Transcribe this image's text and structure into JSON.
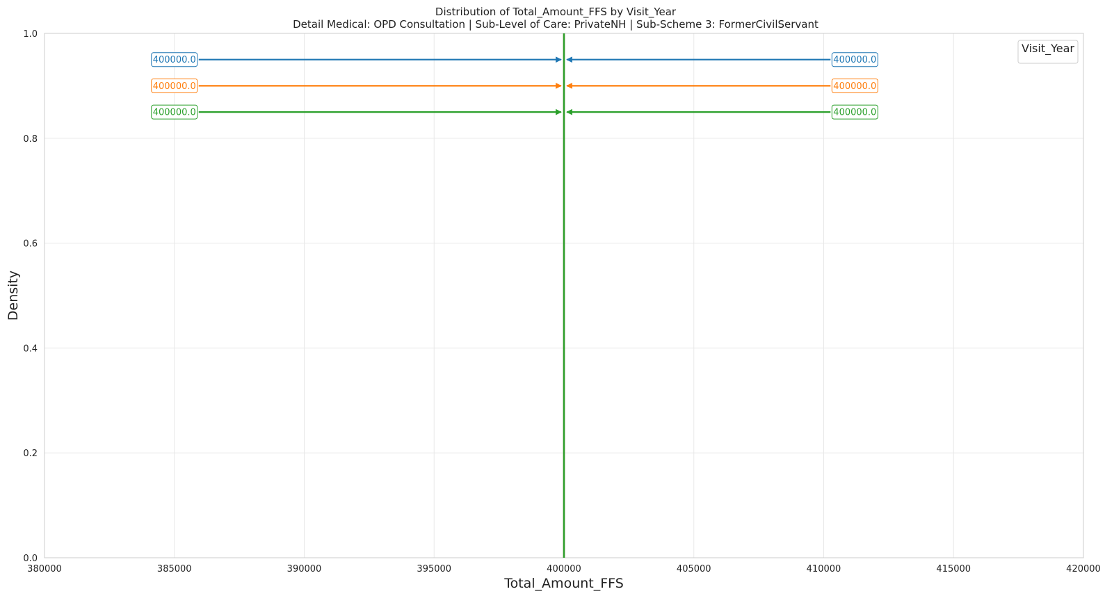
{
  "chart_data": {
    "type": "line",
    "title": "Distribution of Total_Amount_FFS by Visit_Year",
    "subtitle": "Detail Medical: OPD Consultation | Sub-Level of Care: PrivateNH | Sub-Scheme 3: FormerCivilServant",
    "xlabel": "Total_Amount_FFS",
    "ylabel": "Density",
    "xlim": [
      380000,
      420000
    ],
    "ylim": [
      0,
      1.0
    ],
    "x_ticks": [
      "380000",
      "385000",
      "390000",
      "395000",
      "400000",
      "405000",
      "410000",
      "415000",
      "420000"
    ],
    "y_ticks": [
      "0.0",
      "0.2",
      "0.4",
      "0.6",
      "0.8",
      "1.0"
    ],
    "grid": true,
    "legend": {
      "title": "Visit_Year",
      "placement": "top-right",
      "entries": []
    },
    "series": [
      {
        "color": "#1f77b4",
        "x_value": 400000,
        "annotations": [
          {
            "text": "400000.0",
            "from_x": 385000,
            "y": 0.95,
            "side": "left"
          },
          {
            "text": "400000.0",
            "from_x": 411200,
            "y": 0.95,
            "side": "right"
          }
        ]
      },
      {
        "color": "#ff7f0e",
        "x_value": 400000,
        "annotations": [
          {
            "text": "400000.0",
            "from_x": 385000,
            "y": 0.9,
            "side": "left"
          },
          {
            "text": "400000.0",
            "from_x": 411200,
            "y": 0.9,
            "side": "right"
          }
        ]
      },
      {
        "color": "#2ca02c",
        "x_value": 400000,
        "annotations": [
          {
            "text": "400000.0",
            "from_x": 385000,
            "y": 0.85,
            "side": "left"
          },
          {
            "text": "400000.0",
            "from_x": 411200,
            "y": 0.85,
            "side": "right"
          }
        ]
      }
    ]
  }
}
